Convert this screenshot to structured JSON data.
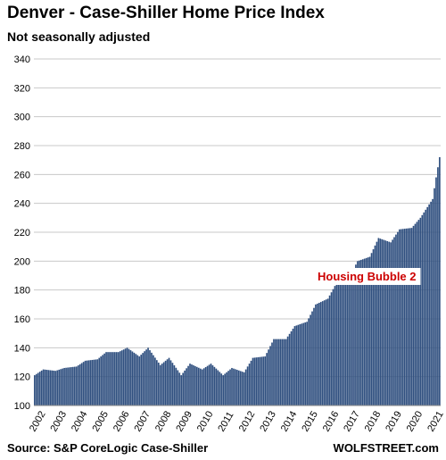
{
  "chart_data": {
    "type": "bar",
    "title": "Denver - Case-Shiller Home Price Index",
    "subtitle": "Not seasonally adjusted",
    "source": "Source: S&P CoreLogic Case-Shiller",
    "brand": "WOLFSTREET.com",
    "annotation": "Housing Bubble 2",
    "ylim": [
      100,
      340
    ],
    "yticks": [
      100,
      120,
      140,
      160,
      180,
      200,
      220,
      240,
      260,
      280,
      300,
      320,
      340
    ],
    "xticks": [
      "2002",
      "2003",
      "2004",
      "2005",
      "2006",
      "2007",
      "2008",
      "2009",
      "2010",
      "2011",
      "2012",
      "2013",
      "2014",
      "2015",
      "2016",
      "2017",
      "2018",
      "2019",
      "2020",
      "2021"
    ],
    "grid": true,
    "bar_color": "#2f4f7f",
    "x_start": "2002-01",
    "x_end": "2021-05",
    "anchors": [
      [
        "2002-01",
        121
      ],
      [
        "2002-06",
        125
      ],
      [
        "2003-01",
        124
      ],
      [
        "2003-06",
        126
      ],
      [
        "2004-01",
        127
      ],
      [
        "2004-06",
        131
      ],
      [
        "2005-01",
        132
      ],
      [
        "2005-06",
        137
      ],
      [
        "2006-01",
        137
      ],
      [
        "2006-06",
        140
      ],
      [
        "2007-01",
        134
      ],
      [
        "2007-06",
        140
      ],
      [
        "2008-01",
        128
      ],
      [
        "2008-06",
        133
      ],
      [
        "2009-01",
        121
      ],
      [
        "2009-06",
        129
      ],
      [
        "2010-01",
        125
      ],
      [
        "2010-06",
        129
      ],
      [
        "2011-01",
        121
      ],
      [
        "2011-06",
        126
      ],
      [
        "2012-01",
        123
      ],
      [
        "2012-06",
        133
      ],
      [
        "2013-01",
        134
      ],
      [
        "2013-06",
        146
      ],
      [
        "2014-01",
        146
      ],
      [
        "2014-06",
        155
      ],
      [
        "2015-01",
        158
      ],
      [
        "2015-06",
        170
      ],
      [
        "2016-01",
        174
      ],
      [
        "2016-06",
        185
      ],
      [
        "2017-01",
        188
      ],
      [
        "2017-06",
        200
      ],
      [
        "2018-01",
        203
      ],
      [
        "2018-06",
        216
      ],
      [
        "2019-01",
        213
      ],
      [
        "2019-06",
        222
      ],
      [
        "2020-01",
        223
      ],
      [
        "2020-06",
        230
      ],
      [
        "2021-01",
        243
      ],
      [
        "2021-03",
        258
      ],
      [
        "2021-05",
        272
      ]
    ]
  }
}
